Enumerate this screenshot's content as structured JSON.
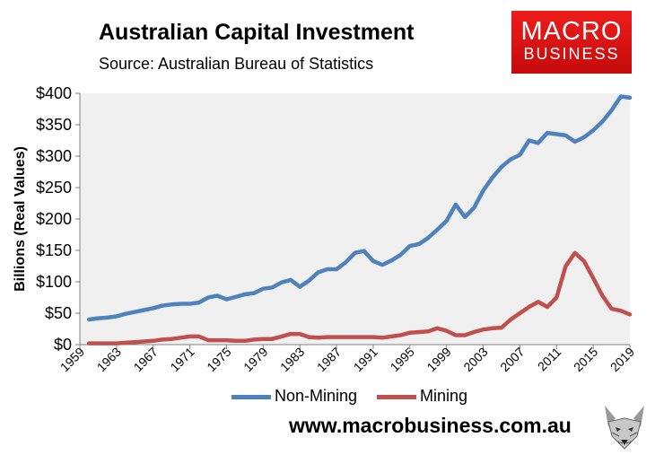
{
  "header": {
    "title": "Australian Capital Investment",
    "source": "Source: Australian Bureau of Statistics"
  },
  "logo": {
    "line1": "MACRO",
    "line2": "BUSINESS",
    "color": "#e01616"
  },
  "footer": {
    "website": "www.macrobusiness.com.au"
  },
  "chart_data": {
    "type": "line",
    "title": "Australian Capital Investment",
    "ylabel": "Billions (Real Values)",
    "xlabel": "",
    "ylim": [
      0,
      400
    ],
    "xlim": [
      1959,
      2019
    ],
    "y_ticks": [
      0,
      50,
      100,
      150,
      200,
      250,
      300,
      350,
      400
    ],
    "y_tick_labels": [
      "$0",
      "$50",
      "$100",
      "$150",
      "$200",
      "$250",
      "$300",
      "$350",
      "$400"
    ],
    "x_tick_labels": [
      "1959",
      "1963",
      "1967",
      "1971",
      "1975",
      "1979",
      "1983",
      "1987",
      "1991",
      "1995",
      "1999",
      "2003",
      "2007",
      "2011",
      "2015",
      "2019"
    ],
    "grid": false,
    "background": "#f0f0f0",
    "legend_position": "bottom",
    "x": [
      1960,
      1961,
      1962,
      1963,
      1964,
      1965,
      1966,
      1967,
      1968,
      1969,
      1970,
      1971,
      1972,
      1973,
      1974,
      1975,
      1976,
      1977,
      1978,
      1979,
      1980,
      1981,
      1982,
      1983,
      1984,
      1985,
      1986,
      1987,
      1988,
      1989,
      1990,
      1991,
      1992,
      1993,
      1994,
      1995,
      1996,
      1997,
      1998,
      1999,
      2000,
      2001,
      2002,
      2003,
      2004,
      2005,
      2006,
      2007,
      2008,
      2009,
      2010,
      2011,
      2012,
      2013,
      2014,
      2015,
      2016,
      2017,
      2018,
      2019
    ],
    "series": [
      {
        "name": "Non-Mining",
        "color": "#4f81bd",
        "values": [
          40,
          42,
          43,
          45,
          49,
          52,
          55,
          58,
          62,
          64,
          65,
          65,
          67,
          75,
          78,
          72,
          76,
          80,
          82,
          89,
          91,
          99,
          103,
          92,
          102,
          115,
          120,
          120,
          131,
          146,
          149,
          133,
          127,
          134,
          143,
          157,
          160,
          170,
          183,
          197,
          223,
          203,
          218,
          245,
          266,
          283,
          295,
          302,
          325,
          321,
          337,
          335,
          333,
          323,
          330,
          341,
          355,
          373,
          395,
          393
        ]
      },
      {
        "name": "Mining",
        "color": "#c0504d",
        "values": [
          2,
          2,
          2,
          2,
          3,
          4,
          5,
          6,
          8,
          9,
          11,
          13,
          13,
          7,
          7,
          7,
          6,
          6,
          8,
          9,
          9,
          13,
          17,
          17,
          12,
          11,
          12,
          12,
          12,
          12,
          12,
          12,
          11,
          13,
          15,
          19,
          20,
          21,
          26,
          22,
          15,
          15,
          20,
          24,
          26,
          27,
          40,
          50,
          60,
          68,
          60,
          75,
          125,
          146,
          133,
          106,
          78,
          57,
          54,
          48
        ]
      }
    ]
  }
}
